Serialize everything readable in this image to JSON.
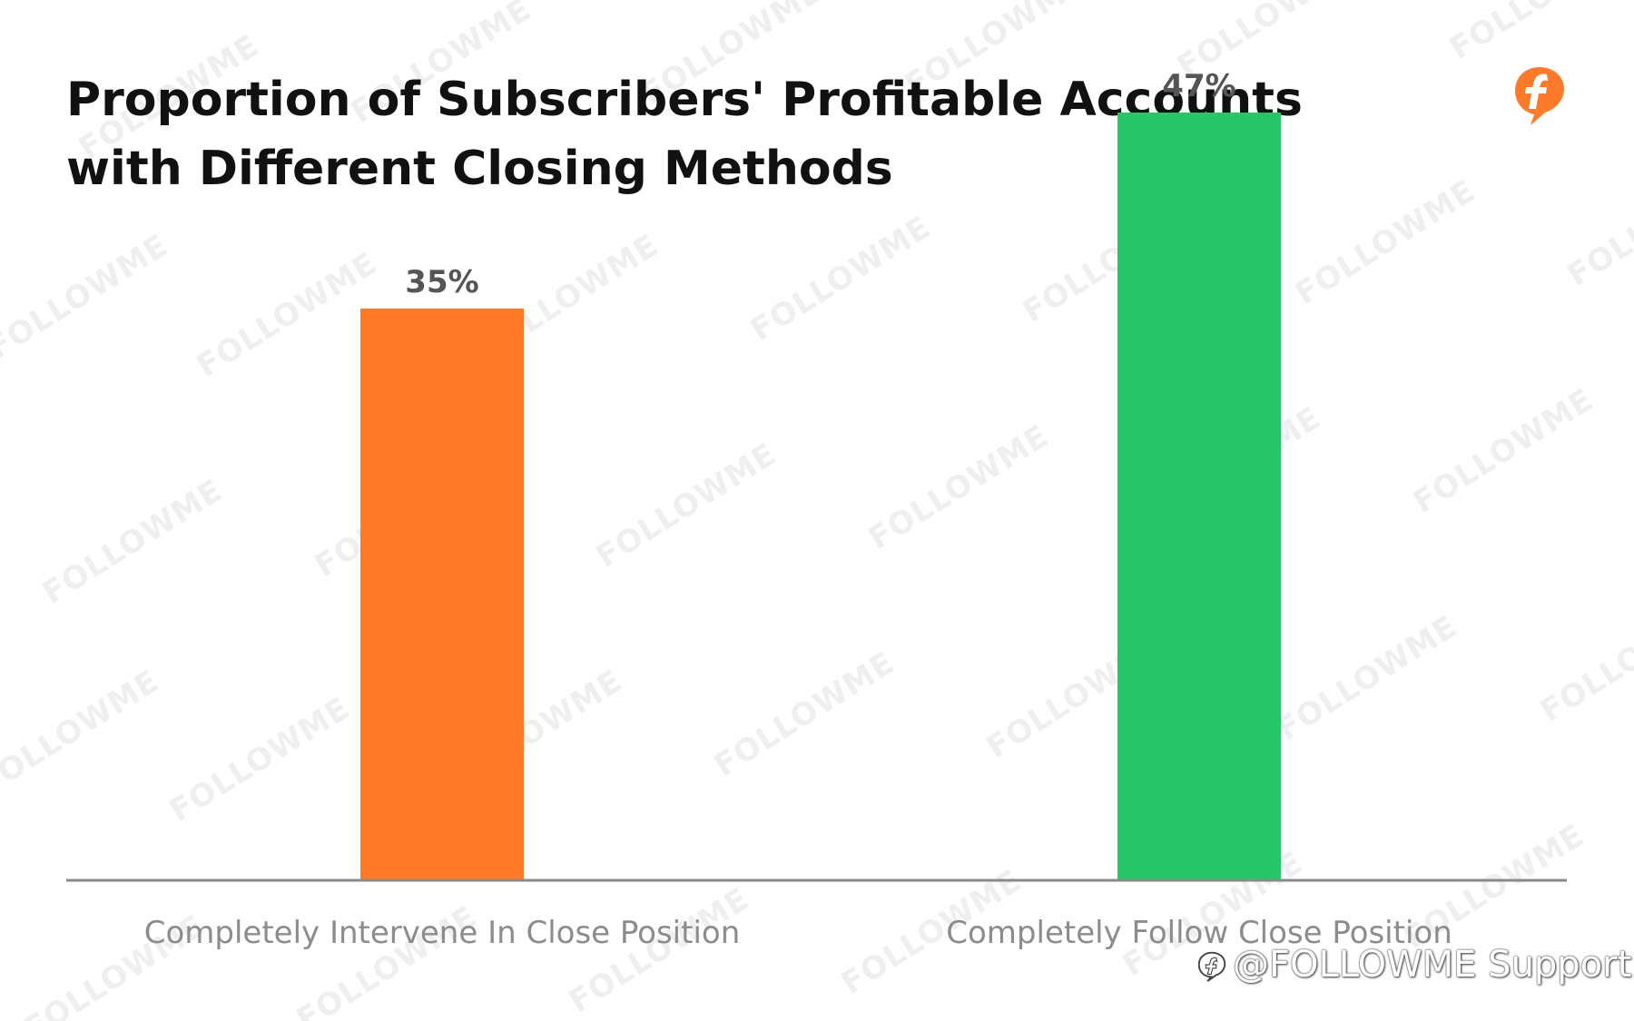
{
  "title": "Proportion of Subscribers' Profitable Accounts with Different Closing Methods",
  "watermark_text": "FOLLOWME",
  "credit": "@FOLLOWME Support",
  "logo_icon": "followme-f-logo-icon",
  "colors": {
    "title": "#111111",
    "axis": "#8a8a8a",
    "value_label": "#555555",
    "category_label": "#8c8c8c",
    "logo": "#ff7a2a"
  },
  "chart_data": {
    "type": "bar",
    "title": "Proportion of Subscribers' Profitable Accounts with Different Closing Methods",
    "categories": [
      "Completely Intervene In Close Position",
      "Completely Follow Close Position"
    ],
    "values": [
      35,
      47
    ],
    "value_labels": [
      "35%",
      "47%"
    ],
    "bar_colors": [
      "#ff7a27",
      "#28c66a"
    ],
    "unit": "%",
    "ylim": [
      0,
      50
    ],
    "xlabel": "",
    "ylabel": "",
    "grid": false,
    "legend": "none"
  }
}
